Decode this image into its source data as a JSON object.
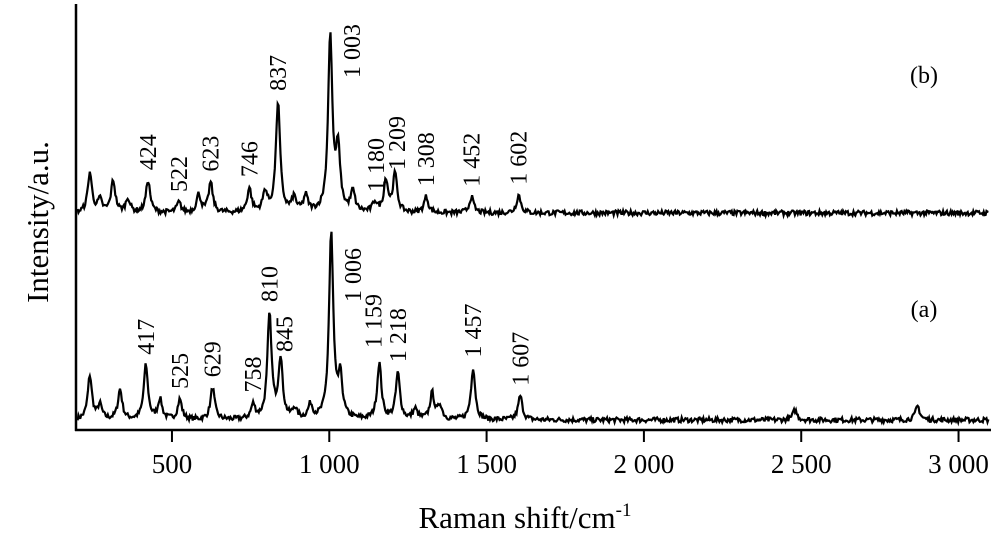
{
  "chart_data": {
    "type": "line",
    "xlabel": "Raman shift/cm",
    "xlabel_superscript": "-1",
    "ylabel": "Intensity/a.u.",
    "xlim": [
      195,
      3100
    ],
    "ylim": [
      -0.05,
      2.075
    ],
    "x_ticks": [
      500,
      1000,
      1500,
      2000,
      2500,
      3000
    ],
    "x_tick_labels": [
      "500",
      "1 000",
      "1 500",
      "2 000",
      "2 500",
      "3 000"
    ],
    "y_ticks": [],
    "grid": false,
    "line_color": "#000000",
    "series": [
      {
        "name": "(a)",
        "offset": 0,
        "peaks": [
          {
            "x": 239,
            "h": 0.22
          },
          {
            "x": 271,
            "h": 0.07
          },
          {
            "x": 335,
            "h": 0.15
          },
          {
            "x": 417,
            "h": 0.27,
            "label": "417"
          },
          {
            "x": 462,
            "h": 0.1
          },
          {
            "x": 525,
            "h": 0.1,
            "label": "525"
          },
          {
            "x": 629,
            "h": 0.16,
            "label": "629"
          },
          {
            "x": 758,
            "h": 0.07,
            "label": "758"
          },
          {
            "x": 810,
            "h": 0.52,
            "label": "810"
          },
          {
            "x": 845,
            "h": 0.3,
            "label": "845"
          },
          {
            "x": 890,
            "h": 0.05
          },
          {
            "x": 940,
            "h": 0.07
          },
          {
            "x": 1006,
            "h": 0.93,
            "label": "1 006"
          },
          {
            "x": 1035,
            "h": 0.2
          },
          {
            "x": 1159,
            "h": 0.28,
            "label": "1 159"
          },
          {
            "x": 1218,
            "h": 0.23,
            "label": "1 218"
          },
          {
            "x": 1273,
            "h": 0.05
          },
          {
            "x": 1327,
            "h": 0.13
          },
          {
            "x": 1352,
            "h": 0.07
          },
          {
            "x": 1457,
            "h": 0.26,
            "label": "1 457"
          },
          {
            "x": 1607,
            "h": 0.12,
            "label": "1 607"
          },
          {
            "x": 2480,
            "h": 0.05
          },
          {
            "x": 2870,
            "h": 0.07
          }
        ]
      },
      {
        "name": "(b)",
        "offset": 1.035,
        "peaks": [
          {
            "x": 239,
            "h": 0.2
          },
          {
            "x": 271,
            "h": 0.06
          },
          {
            "x": 313,
            "h": 0.16
          },
          {
            "x": 360,
            "h": 0.07
          },
          {
            "x": 424,
            "h": 0.16,
            "label": "424"
          },
          {
            "x": 522,
            "h": 0.05,
            "label": "522"
          },
          {
            "x": 585,
            "h": 0.09
          },
          {
            "x": 623,
            "h": 0.15,
            "label": "623"
          },
          {
            "x": 746,
            "h": 0.12,
            "label": "746"
          },
          {
            "x": 796,
            "h": 0.1
          },
          {
            "x": 837,
            "h": 0.55,
            "label": "837"
          },
          {
            "x": 888,
            "h": 0.07
          },
          {
            "x": 925,
            "h": 0.08
          },
          {
            "x": 1003,
            "h": 0.88,
            "label": "1 003"
          },
          {
            "x": 1028,
            "h": 0.3
          },
          {
            "x": 1075,
            "h": 0.1
          },
          {
            "x": 1145,
            "h": 0.05
          },
          {
            "x": 1180,
            "h": 0.16,
            "label": "1 180"
          },
          {
            "x": 1209,
            "h": 0.19,
            "label": "1 209"
          },
          {
            "x": 1308,
            "h": 0.08,
            "label": "1 308"
          },
          {
            "x": 1452,
            "h": 0.08,
            "label": "1 452"
          },
          {
            "x": 1602,
            "h": 0.09,
            "label": "1 602"
          }
        ]
      }
    ]
  }
}
